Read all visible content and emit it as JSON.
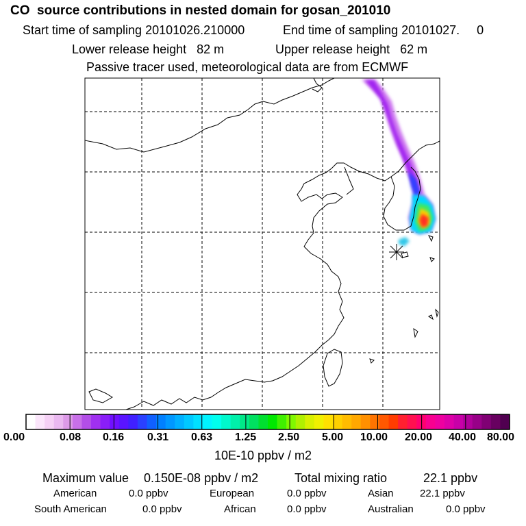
{
  "header": {
    "title": "CO  source contributions in nested domain for gosan_201010",
    "start_label": "Start time of sampling 20101026.210000",
    "end_label": "End time of sampling 20101027.     0",
    "lower_label": "Lower release height   82 m",
    "upper_label": "Upper release height   62 m",
    "info": "Passive tracer used, meteorological data are from ECMWF"
  },
  "colorbar": {
    "tick_labels": [
      "0.00",
      "0.08",
      "0.16",
      "0.31",
      "0.63",
      "1.25",
      "2.50",
      "5.00",
      "10.00",
      "20.00",
      "40.00",
      "80.00"
    ],
    "unit": "10E-10 ppbv / m2",
    "colors": [
      "#ffffff",
      "#fbe6fb",
      "#f5d0f5",
      "#eab8f0",
      "#dd9ae8",
      "#c870e8",
      "#b34ee8",
      "#a030f0",
      "#8a1ef8",
      "#7010ff",
      "#5a14ff",
      "#4020ff",
      "#2a40ff",
      "#1060ff",
      "#0080ff",
      "#0098ff",
      "#00b0ff",
      "#00c8ff",
      "#00e0ff",
      "#00f4ff",
      "#00ffee",
      "#00f8cc",
      "#00f0aa",
      "#00e888",
      "#00e060",
      "#00e030",
      "#00e800",
      "#40f000",
      "#80f800",
      "#b0f000",
      "#d8f000",
      "#f0f000",
      "#ffe000",
      "#ffd000",
      "#ffbc00",
      "#ffa800",
      "#ff9000",
      "#ff7400",
      "#ff5800",
      "#ff3c00",
      "#ff2030",
      "#ff1050",
      "#ff0070",
      "#f80090",
      "#ee00a0",
      "#dd00a8",
      "#c800a8",
      "#b0009a",
      "#980088",
      "#800074",
      "#680060",
      "#500050"
    ]
  },
  "stats": {
    "max_label": "Maximum value",
    "max_value": "0.150E-08 ppbv / m2",
    "total_label": "Total mixing ratio",
    "total_value": "22.1 ppbv"
  },
  "sources": [
    {
      "name": "American",
      "value": "0.0 ppbv"
    },
    {
      "name": "European",
      "value": "0.0 ppbv"
    },
    {
      "name": "Asian",
      "value": "22.1 ppbv"
    },
    {
      "name": "South American",
      "value": "0.0 ppbv"
    },
    {
      "name": "African",
      "value": "0.0 ppbv"
    },
    {
      "name": "Australian",
      "value": "0.0 ppbv"
    }
  ]
}
